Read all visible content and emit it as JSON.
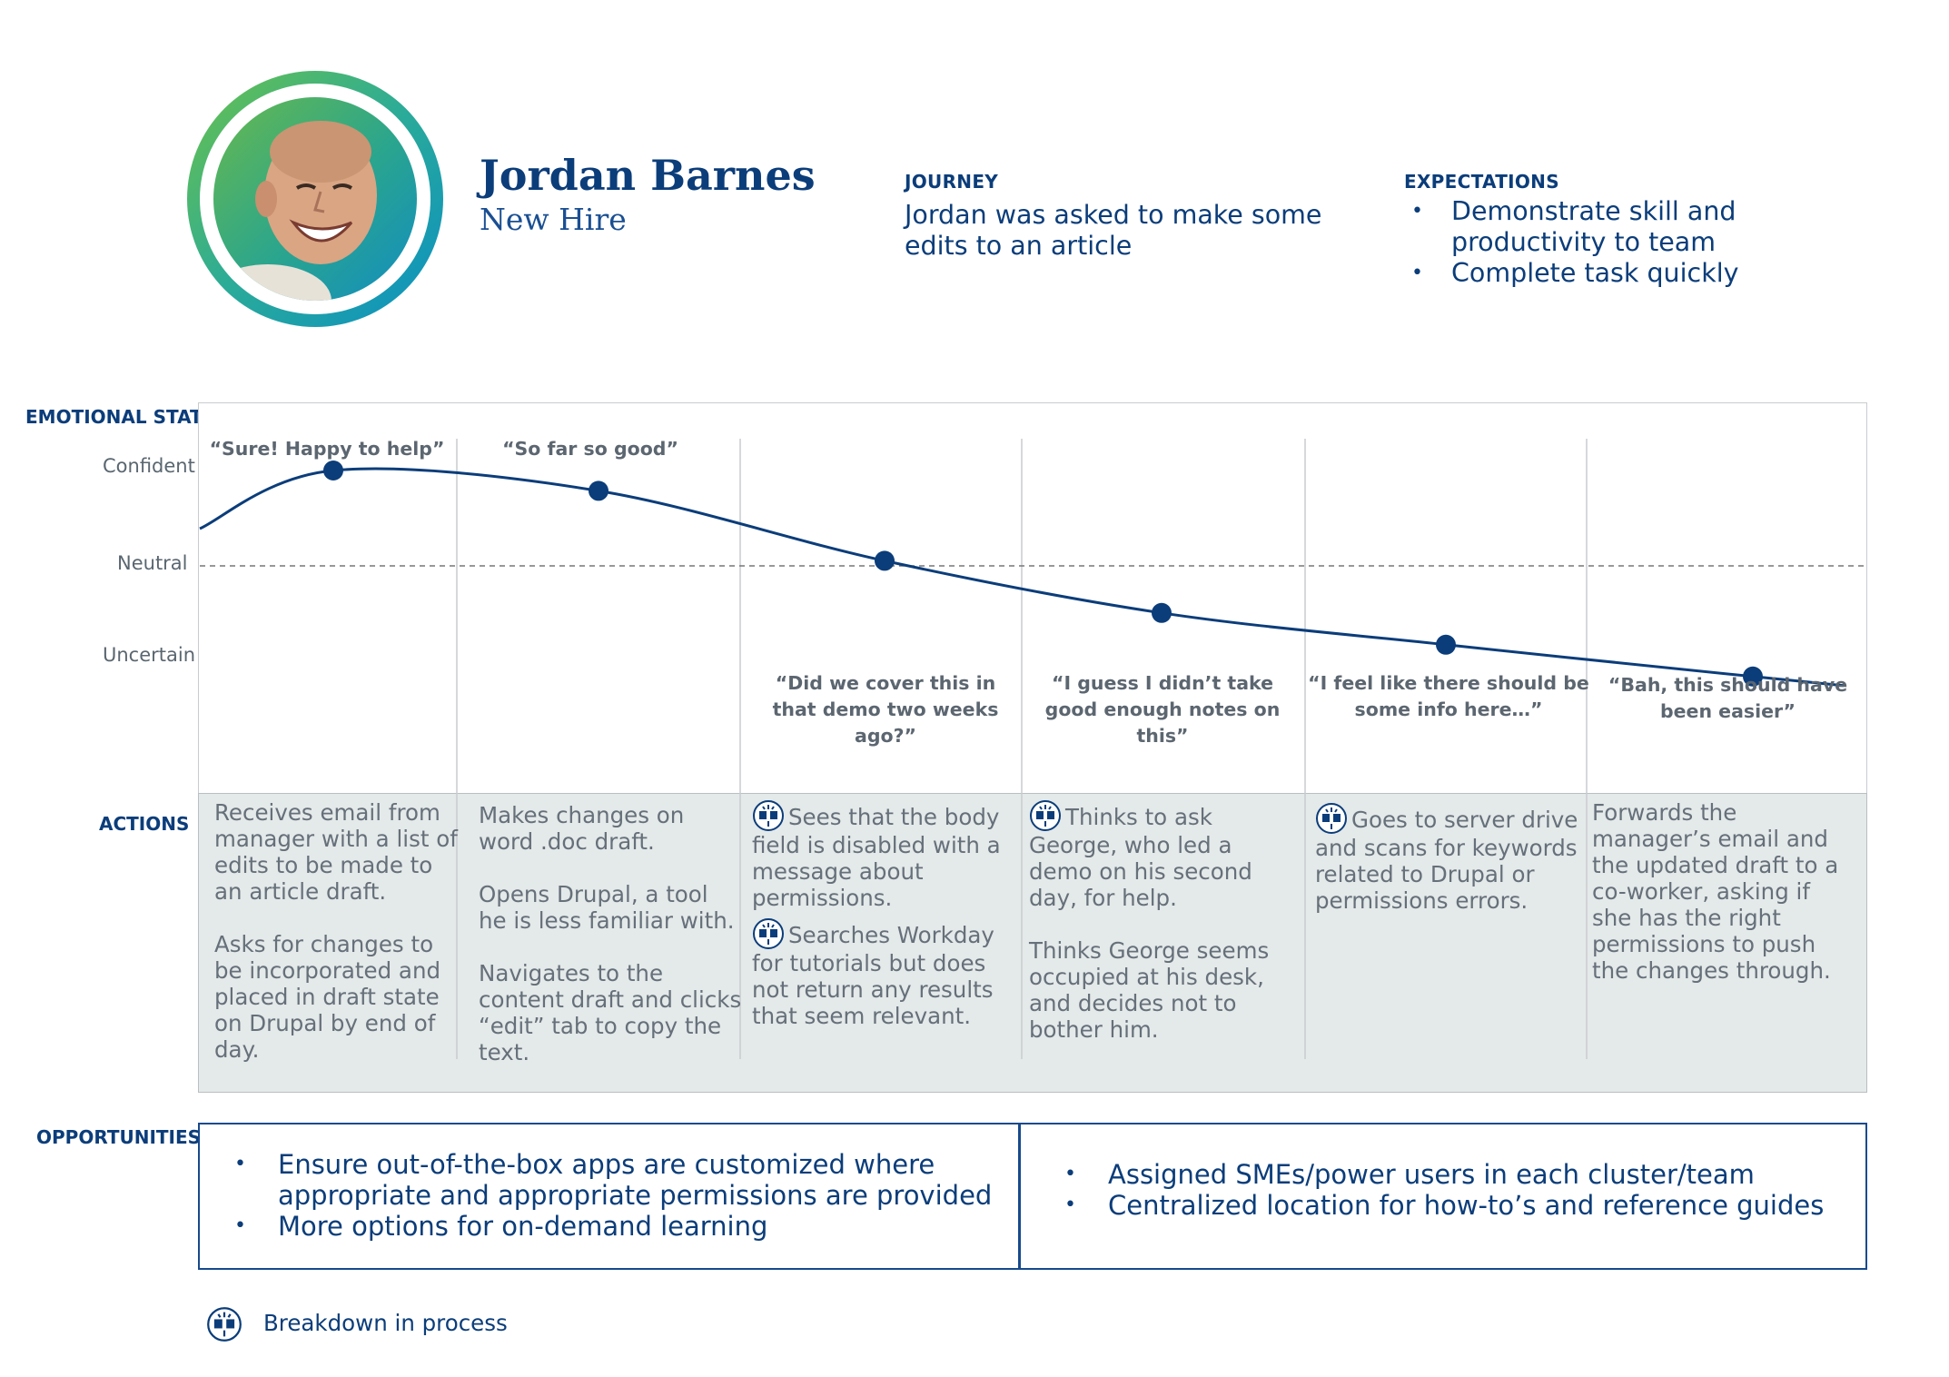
{
  "persona": {
    "name": "Jordan Barnes",
    "role": "New Hire"
  },
  "journey": {
    "label": "JOURNEY",
    "text": "Jordan was asked to make some edits to an article"
  },
  "expectations": {
    "label": "EXPECTATIONS",
    "items": [
      "Demonstrate skill and productivity to team",
      "Complete task quickly"
    ]
  },
  "row_labels": {
    "emotional_state": "EMOTIONAL STATE",
    "actions": "ACTIONS",
    "opportunities": "OPPORTUNITIES"
  },
  "scale": {
    "confident": "Confident",
    "neutral": "Neutral",
    "uncertain": "Uncertain"
  },
  "chart_data": {
    "type": "line",
    "x": [
      1,
      2,
      3,
      4,
      5,
      6
    ],
    "series": [
      {
        "values": [
          0.75,
          0.59,
          0.04,
          -0.37,
          -0.62,
          -0.87
        ]
      }
    ],
    "y_labels": [
      "Uncertain",
      "Neutral",
      "Confident"
    ],
    "ylim": [
      -1,
      1
    ],
    "color": "#0b3d7a"
  },
  "stages": [
    {
      "quote": "“Sure! Happy to help”",
      "breakdown": false,
      "actions": [
        "Receives email from manager with a list of edits to be made to an article draft.",
        "Asks for changes to be incorporated and placed in draft state on Drupal by end of day."
      ]
    },
    {
      "quote": "“So far so good”",
      "breakdown": false,
      "actions": [
        "Makes changes on word .doc draft.",
        "Opens Drupal, a tool he is less familiar with.",
        "Navigates to the content draft and clicks “edit” tab to copy the text."
      ]
    },
    {
      "quote": "“Did we cover this in that demo two weeks ago?”",
      "breakdown": true,
      "actions": [
        "Sees that the body field is disabled with a message about permissions.",
        "Searches Workday for tutorials but does not return any results that seem relevant."
      ]
    },
    {
      "quote": "“I guess I didn’t take good enough notes on this”",
      "breakdown": true,
      "actions": [
        "Thinks to ask George, who led a demo on his second day, for help.",
        "Thinks George seems occupied at his desk, and decides not to bother him."
      ]
    },
    {
      "quote": "“I feel like there should be some info here…”",
      "breakdown": true,
      "actions": [
        "Goes to server drive and scans for keywords related to Drupal or permissions errors."
      ]
    },
    {
      "quote": "“Bah, this should have been easier”",
      "breakdown": false,
      "actions": [
        "Forwards the manager’s email and the updated draft to a co-worker, asking if she has the right permissions to push the changes through."
      ]
    }
  ],
  "opportunities": {
    "left": [
      "Ensure out-of-the-box apps are customized where appropriate and appropriate permissions are provided",
      "More options for on-demand learning"
    ],
    "right": [
      "Assigned SMEs/power users in each cluster/team",
      "Centralized location for how-to’s and reference guides"
    ]
  },
  "legend": {
    "label": "Breakdown in process",
    "icon": "breakdown-icon"
  },
  "colors": {
    "primary": "#0b3d7a",
    "muted_text": "#66707a",
    "actions_bg": "#e4e9e9",
    "avatar_gradient": [
      "#6cc24a",
      "#0a8fc4"
    ]
  }
}
